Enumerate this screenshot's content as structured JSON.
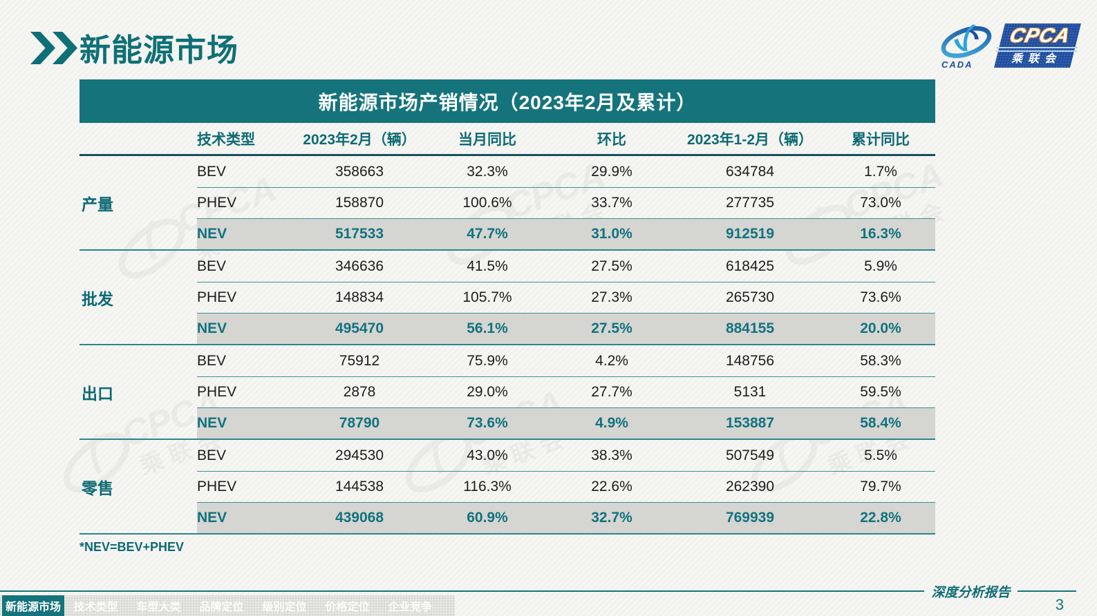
{
  "header": {
    "title": "新能源市场",
    "logo": {
      "cada": "CADA",
      "cpca": "CPCA",
      "subtitle": "乘联会"
    }
  },
  "table": {
    "title": "新能源市场产销情况（2023年2月及累计）",
    "columns": [
      "技术类型",
      "2023年2月（辆）",
      "当月同比",
      "环比",
      "2023年1-2月（辆）",
      "累计同比"
    ],
    "groups": [
      {
        "label": "产量",
        "rows": [
          {
            "type": "BEV",
            "highlight": false,
            "values": [
              "358663",
              "32.3%",
              "29.9%",
              "634784",
              "1.7%"
            ]
          },
          {
            "type": "PHEV",
            "highlight": false,
            "values": [
              "158870",
              "100.6%",
              "33.7%",
              "277735",
              "73.0%"
            ]
          },
          {
            "type": "NEV",
            "highlight": true,
            "values": [
              "517533",
              "47.7%",
              "31.0%",
              "912519",
              "16.3%"
            ]
          }
        ]
      },
      {
        "label": "批发",
        "rows": [
          {
            "type": "BEV",
            "highlight": false,
            "values": [
              "346636",
              "41.5%",
              "27.5%",
              "618425",
              "5.9%"
            ]
          },
          {
            "type": "PHEV",
            "highlight": false,
            "values": [
              "148834",
              "105.7%",
              "27.3%",
              "265730",
              "73.6%"
            ]
          },
          {
            "type": "NEV",
            "highlight": true,
            "values": [
              "495470",
              "56.1%",
              "27.5%",
              "884155",
              "20.0%"
            ]
          }
        ]
      },
      {
        "label": "出口",
        "rows": [
          {
            "type": "BEV",
            "highlight": false,
            "values": [
              "75912",
              "75.9%",
              "4.2%",
              "148756",
              "58.3%"
            ]
          },
          {
            "type": "PHEV",
            "highlight": false,
            "values": [
              "2878",
              "29.0%",
              "27.7%",
              "5131",
              "59.5%"
            ]
          },
          {
            "type": "NEV",
            "highlight": true,
            "values": [
              "78790",
              "73.6%",
              "4.9%",
              "153887",
              "58.4%"
            ]
          }
        ]
      },
      {
        "label": "零售",
        "rows": [
          {
            "type": "BEV",
            "highlight": false,
            "values": [
              "294530",
              "43.0%",
              "38.3%",
              "507549",
              "5.5%"
            ]
          },
          {
            "type": "PHEV",
            "highlight": false,
            "values": [
              "144538",
              "116.3%",
              "22.6%",
              "262390",
              "79.7%"
            ]
          },
          {
            "type": "NEV",
            "highlight": true,
            "values": [
              "439068",
              "60.9%",
              "32.7%",
              "769939",
              "22.8%"
            ]
          }
        ]
      }
    ],
    "footnote": "*NEV=BEV+PHEV"
  },
  "footer": {
    "report_label": "深度分析报告",
    "page_number": "3",
    "tabs": [
      {
        "label": "新能源市场",
        "active": true
      },
      {
        "label": "技术类型",
        "active": false
      },
      {
        "label": "车型大类",
        "active": false
      },
      {
        "label": "品牌定位",
        "active": false
      },
      {
        "label": "级别定位",
        "active": false
      },
      {
        "label": "价格定位",
        "active": false
      },
      {
        "label": "企业竞争",
        "active": false
      }
    ]
  },
  "watermark": {
    "cpca": "CPCA",
    "subtitle": "乘联会"
  },
  "colors": {
    "teal": "#15747B",
    "teal_dark": "#17525C",
    "teal_text": "#0D6A74",
    "row_highlight": "#D5D5D2",
    "page_bg": "#F2F2EF",
    "nav_bg": "#DCDCD9",
    "logo_blue": "#1E4DA0",
    "logo_light_blue": "#2EA4D8",
    "logo_orange": "#E2922D",
    "data_text": "#1D1D1D"
  }
}
